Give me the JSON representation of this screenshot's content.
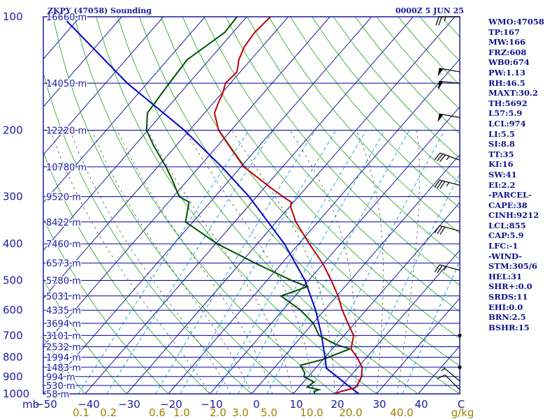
{
  "header": {
    "title": "ZKPY (47058) Sounding",
    "datetime": "0000Z  5 JUN 25"
  },
  "stats": [
    "WMO:47058",
    "TP:167",
    "MW:166",
    "FRZ:608",
    "WB0:674",
    "PW:1.13",
    "RH:46.5",
    "MAXT:30.2",
    "TH:5692",
    "L57:5.9",
    "LCL:974",
    "LI:5.5",
    "SI:8.8",
    "TT:35",
    "KI:16",
    "SW:41",
    "EI:2.2",
    "-PARCEL-",
    "CAPE:38",
    "CINH:9212",
    "LCL:855",
    "CAP:5.9",
    "LFC:-1",
    "-WIND-",
    "STM:305/6",
    "HEL:31",
    "SHR+:0.0",
    "SRDS:11",
    "EHI:0.0",
    "BRN:2.5",
    "BSHR:15"
  ],
  "colors": {
    "frame": "#1a1aa0",
    "isobar": "#0000a0",
    "isotherm": "#1a1aa0",
    "dry_adiabat": "#1aa01a",
    "moist_adiabat": "#333333",
    "mixing_ratio": "#00a0c8",
    "temperature": "#c00000",
    "dewpoint": "#005000",
    "parcel": "#0000c8",
    "wind": "#000000",
    "x_tick_labels": "#1a1aa0",
    "mixing_ratio_labels": "#a08000"
  },
  "chart_data": {
    "type": "skew-t",
    "xlabel_left": "mb",
    "xlabel_right": "g/kg",
    "pressure_levels": [
      {
        "p": 100,
        "label": "100",
        "height": "16660 m"
      },
      {
        "p": 150,
        "label": "",
        "height": "14050 m"
      },
      {
        "p": 200,
        "label": "200",
        "height": "12220 m"
      },
      {
        "p": 250,
        "label": "",
        "height": "10780 m"
      },
      {
        "p": 300,
        "label": "300",
        "height": "9520 m"
      },
      {
        "p": 350,
        "label": "",
        "height": "8422 m"
      },
      {
        "p": 400,
        "label": "400",
        "height": "7460 m"
      },
      {
        "p": 450,
        "label": "",
        "height": "6573 m"
      },
      {
        "p": 500,
        "label": "500",
        "height": "5780 m"
      },
      {
        "p": 550,
        "label": "",
        "height": "5031 m"
      },
      {
        "p": 600,
        "label": "600",
        "height": "4335 m"
      },
      {
        "p": 650,
        "label": "",
        "height": "3694 m"
      },
      {
        "p": 700,
        "label": "700",
        "height": "3101 m"
      },
      {
        "p": 750,
        "label": "",
        "height": "2532 m"
      },
      {
        "p": 800,
        "label": "800",
        "height": "1994 m"
      },
      {
        "p": 850,
        "label": "",
        "height": "1483 m"
      },
      {
        "p": 900,
        "label": "900",
        "height": "994 m"
      },
      {
        "p": 950,
        "label": "",
        "height": "530 m"
      },
      {
        "p": 1000,
        "label": "1000",
        "height": "58 m"
      }
    ],
    "temperature_ticks": [
      "−50",
      "−40",
      "−30",
      "−20",
      "−10",
      "0",
      "10",
      "20",
      "30",
      "40",
      "C"
    ],
    "mixing_ratio_labels": [
      "0.1",
      "0.2",
      "0.6",
      "1.0",
      "2.0",
      "3.0",
      "5.0",
      "10.0",
      "20.0",
      "40.0"
    ],
    "temp_range_at_surface": [
      -50,
      50
    ],
    "pressure_range": [
      100,
      1000
    ],
    "temperature_profile": [
      {
        "p": 1000,
        "t": 20
      },
      {
        "p": 985,
        "t": 21
      },
      {
        "p": 965,
        "t": 23.5
      },
      {
        "p": 950,
        "t": 23.6
      },
      {
        "p": 925,
        "t": 23.2
      },
      {
        "p": 900,
        "t": 22.8
      },
      {
        "p": 850,
        "t": 21.0
      },
      {
        "p": 800,
        "t": 17.7
      },
      {
        "p": 760,
        "t": 14.5
      },
      {
        "p": 700,
        "t": 12.3
      },
      {
        "p": 650,
        "t": 8.4
      },
      {
        "p": 600,
        "t": 4.3
      },
      {
        "p": 550,
        "t": 0.3
      },
      {
        "p": 500,
        "t": -4.6
      },
      {
        "p": 450,
        "t": -10.3
      },
      {
        "p": 400,
        "t": -17.5
      },
      {
        "p": 350,
        "t": -25.3
      },
      {
        "p": 320,
        "t": -29.6
      },
      {
        "p": 310,
        "t": -30.6
      },
      {
        "p": 300,
        "t": -33.7
      },
      {
        "p": 280,
        "t": -39.7
      },
      {
        "p": 250,
        "t": -49.3
      },
      {
        "p": 220,
        "t": -57.2
      },
      {
        "p": 200,
        "t": -63.0
      },
      {
        "p": 180,
        "t": -67.6
      },
      {
        "p": 170,
        "t": -68.7
      },
      {
        "p": 160,
        "t": -69.7
      },
      {
        "p": 150,
        "t": -71.2
      },
      {
        "p": 140,
        "t": -70.8
      },
      {
        "p": 130,
        "t": -72.9
      },
      {
        "p": 120,
        "t": -74.3
      },
      {
        "p": 110,
        "t": -74.8
      },
      {
        "p": 100,
        "t": -74.3
      }
    ],
    "dewpoint_profile": [
      {
        "p": 1000,
        "t": 15.2
      },
      {
        "p": 985,
        "t": 14.5
      },
      {
        "p": 975,
        "t": 15.3
      },
      {
        "p": 960,
        "t": 12.0
      },
      {
        "p": 930,
        "t": 12.5
      },
      {
        "p": 900,
        "t": 9.0
      },
      {
        "p": 880,
        "t": 8.4
      },
      {
        "p": 840,
        "t": 5.8
      },
      {
        "p": 810,
        "t": 10.0
      },
      {
        "p": 760,
        "t": 14.2
      },
      {
        "p": 740,
        "t": 10.0
      },
      {
        "p": 700,
        "t": 4.0
      },
      {
        "p": 650,
        "t": 0.1
      },
      {
        "p": 600,
        "t": -5.7
      },
      {
        "p": 550,
        "t": -13.4
      },
      {
        "p": 520,
        "t": -9.0
      },
      {
        "p": 500,
        "t": -14.2
      },
      {
        "p": 450,
        "t": -26.5
      },
      {
        "p": 400,
        "t": -39.6
      },
      {
        "p": 350,
        "t": -51.8
      },
      {
        "p": 310,
        "t": -55.1
      },
      {
        "p": 300,
        "t": -58.6
      },
      {
        "p": 270,
        "t": -63.9
      },
      {
        "p": 250,
        "t": -68.0
      },
      {
        "p": 220,
        "t": -75.3
      },
      {
        "p": 200,
        "t": -80.3
      },
      {
        "p": 180,
        "t": -83.7
      },
      {
        "p": 150,
        "t": -84.7
      },
      {
        "p": 130,
        "t": -85.3
      },
      {
        "p": 110,
        "t": -82.0
      },
      {
        "p": 100,
        "t": -82.3
      }
    ],
    "parcel_profile": [
      {
        "p": 1000,
        "t": 25.8
      },
      {
        "p": 950,
        "t": 21.4
      },
      {
        "p": 900,
        "t": 16.9
      },
      {
        "p": 855,
        "t": 12.6
      },
      {
        "p": 800,
        "t": 10.0
      },
      {
        "p": 700,
        "t": 4.6
      },
      {
        "p": 600,
        "t": -2.1
      },
      {
        "p": 500,
        "t": -10.9
      },
      {
        "p": 400,
        "t": -23.5
      },
      {
        "p": 300,
        "t": -41.8
      },
      {
        "p": 250,
        "t": -54.6
      },
      {
        "p": 200,
        "t": -71.2
      },
      {
        "p": 150,
        "t": -94.8
      },
      {
        "p": 100,
        "t": -124.2
      }
    ],
    "wind_barbs": [
      {
        "p": 100,
        "dir": 270,
        "speed_kt": 25
      },
      {
        "p": 140,
        "dir": 280,
        "speed_kt": 50
      },
      {
        "p": 150,
        "dir": 275,
        "speed_kt": 50
      },
      {
        "p": 185,
        "dir": 280,
        "speed_kt": 50
      },
      {
        "p": 240,
        "dir": 290,
        "speed_kt": 35
      },
      {
        "p": 280,
        "dir": 285,
        "speed_kt": 35
      },
      {
        "p": 370,
        "dir": 285,
        "speed_kt": 30
      },
      {
        "p": 470,
        "dir": 285,
        "speed_kt": 25
      },
      {
        "p": 700,
        "dir": 0,
        "speed_kt": 0
      },
      {
        "p": 850,
        "dir": 0,
        "speed_kt": 0
      },
      {
        "p": 925,
        "dir": 310,
        "speed_kt": 5
      },
      {
        "p": 975,
        "dir": 315,
        "speed_kt": 10
      }
    ]
  }
}
